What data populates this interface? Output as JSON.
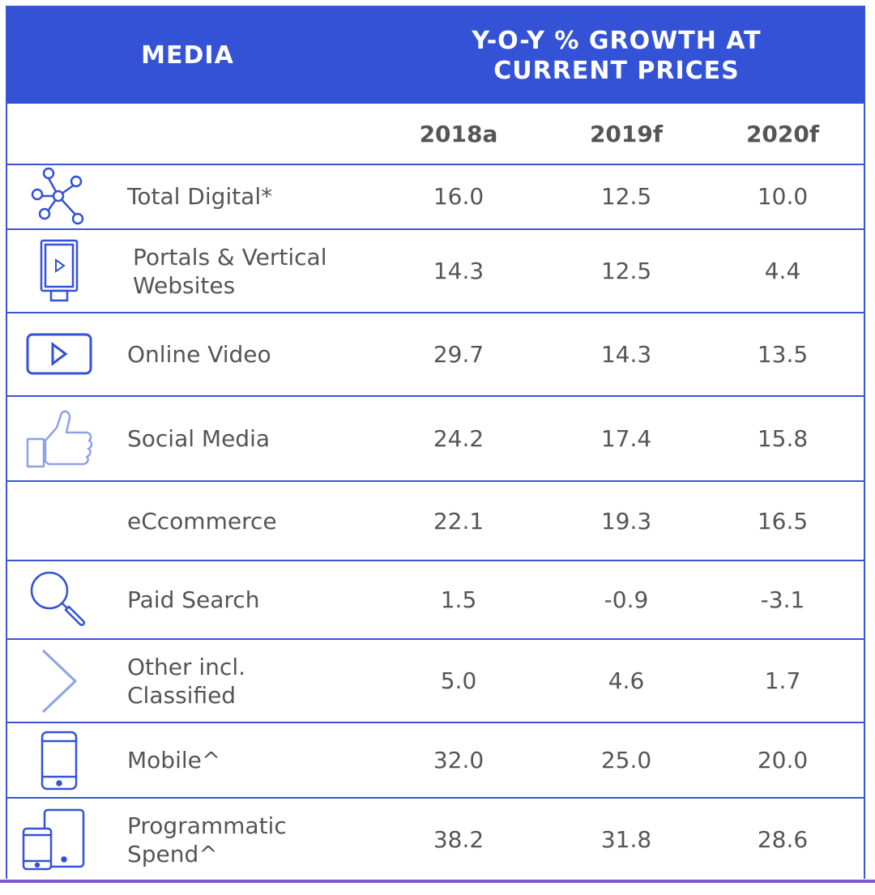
{
  "chart_data": {
    "type": "table",
    "header": {
      "media": "MEDIA",
      "growth_line1": "Y-O-Y % GROWTH AT",
      "growth_line2": "CURRENT PRICES"
    },
    "columns": [
      "2018a",
      "2019f",
      "2020f"
    ],
    "rows": [
      {
        "label": "Total Digital*",
        "icon": "network-icon",
        "values": [
          "16.0",
          "12.5",
          "10.0"
        ]
      },
      {
        "label": "Portals & Vertical\nWebsites",
        "icon": "billboard-icon",
        "values": [
          "14.3",
          "12.5",
          "4.4"
        ]
      },
      {
        "label": "Online Video",
        "icon": "play-icon",
        "values": [
          "29.7",
          "14.3",
          "13.5"
        ]
      },
      {
        "label": "Social Media",
        "icon": "thumbs-up-icon",
        "values": [
          "24.2",
          "17.4",
          "15.8"
        ]
      },
      {
        "label": "eCcommerce",
        "icon": "",
        "values": [
          "22.1",
          "19.3",
          "16.5"
        ]
      },
      {
        "label": "Paid Search",
        "icon": "search-icon",
        "values": [
          "1.5",
          "-0.9",
          "-3.1"
        ]
      },
      {
        "label": "Other incl.\nClassified",
        "icon": "chevron-right-icon",
        "values": [
          "5.0",
          "4.6",
          "1.7"
        ]
      },
      {
        "label": "Mobile^",
        "icon": "smartphone-icon",
        "values": [
          "32.0",
          "25.0",
          "20.0"
        ]
      },
      {
        "label": "Programmatic\nSpend^",
        "icon": "devices-icon",
        "values": [
          "38.2",
          "31.8",
          "28.6"
        ]
      }
    ]
  },
  "colors": {
    "header_bg": "#3452d6",
    "border": "#3a55d4",
    "icon_dark": "#3452d6",
    "icon_light": "#8ea2e6",
    "text": "#555555"
  }
}
